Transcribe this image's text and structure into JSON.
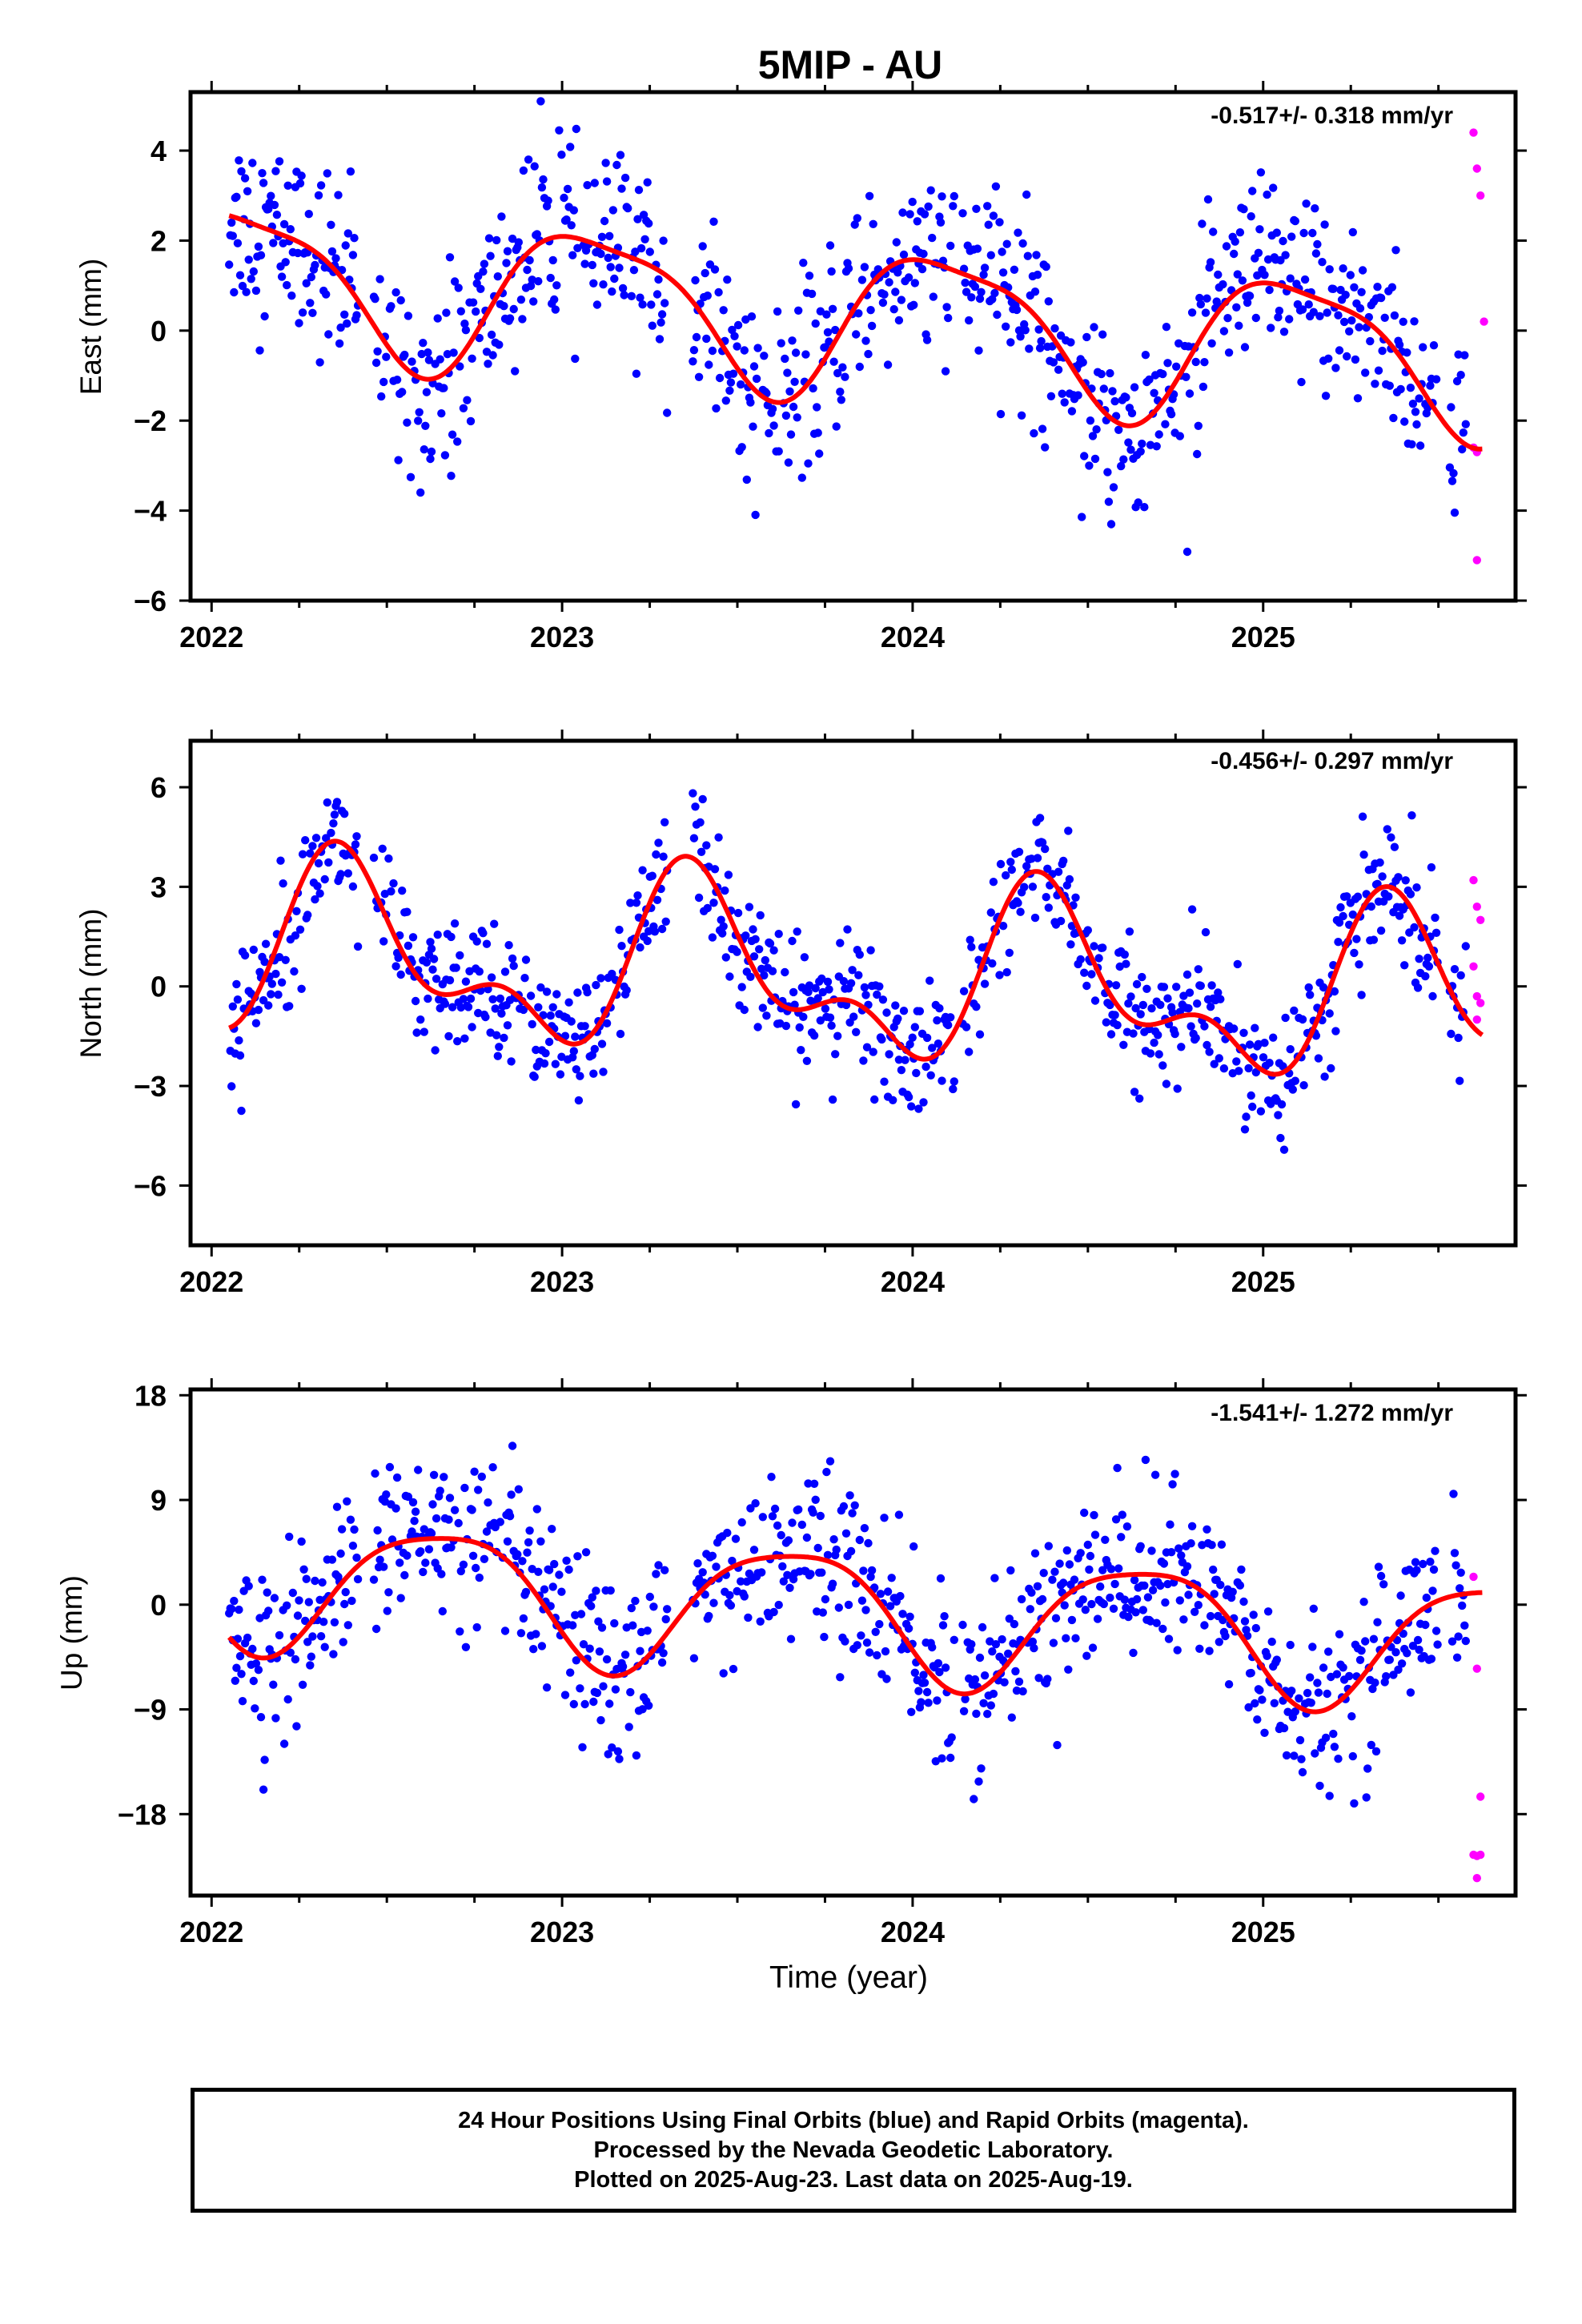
{
  "title": "5MIP - AU",
  "colors": {
    "final_orbit_points": "#0000ff",
    "rapid_orbit_points": "#ff00ff",
    "fit_curve": "#ff0000",
    "frame": "#000000"
  },
  "xlabel": "Time (year)",
  "footer": {
    "lines": [
      "24 Hour Positions Using Final Orbits (blue) and Rapid Orbits (magenta).",
      "Processed by the Nevada Geodetic Laboratory.",
      "Plotted on 2025-Aug-23. Last data on 2025-Aug-19."
    ]
  },
  "chart_data": [
    {
      "type": "scatter",
      "ylabel": "East (mm)",
      "rate_label": "-0.517+/- 0.318 mm/yr",
      "xlim": [
        2021.94,
        2025.72
      ],
      "ylim": [
        -6,
        5.3
      ],
      "xticks": [
        2022,
        2023,
        2024,
        2025
      ],
      "xtick_labels": [
        "2022",
        "2023",
        "2024",
        "2025"
      ],
      "yticks": [
        -6,
        -4,
        -2,
        0,
        2,
        4
      ],
      "ytick_labels": [
        "−6",
        "−4",
        "−2",
        "0",
        "2",
        "4"
      ],
      "fit": {
        "offset": 0.3,
        "trend": -0.517,
        "annual_cos": -0.45,
        "annual_sin": 1.55,
        "semiannual_cos": 0.2,
        "semiannual_sin": 0.35,
        "t0": 2023.8
      },
      "scatter_sd": 1.05,
      "rapid_points": [
        [
          2025.6,
          4.4
        ],
        [
          2025.61,
          3.6
        ],
        [
          2025.62,
          3.0
        ],
        [
          2025.63,
          0.2
        ],
        [
          2025.6,
          -2.6
        ],
        [
          2025.61,
          -2.7
        ],
        [
          2025.61,
          -5.1
        ]
      ]
    },
    {
      "type": "scatter",
      "ylabel": "North (mm)",
      "rate_label": "-0.456+/- 0.297 mm/yr",
      "xlim": [
        2021.94,
        2025.72
      ],
      "ylim": [
        -7.8,
        7.4
      ],
      "xticks": [
        2022,
        2023,
        2024,
        2025
      ],
      "xtick_labels": [
        "2022",
        "2023",
        "2024",
        "2025"
      ],
      "yticks": [
        -6,
        -3,
        0,
        3,
        6
      ],
      "ytick_labels": [
        "−6",
        "−3",
        "0",
        "3",
        "6"
      ],
      "fit": {
        "offset": 0.3,
        "trend": -0.456,
        "annual_cos": -1.85,
        "annual_sin": -1.2,
        "semiannual_cos": 1.15,
        "semiannual_sin": 0.6,
        "t0": 2023.8
      },
      "scatter_sd": 0.95,
      "rapid_points": [
        [
          2025.6,
          3.2
        ],
        [
          2025.61,
          2.4
        ],
        [
          2025.62,
          2.0
        ],
        [
          2025.6,
          0.6
        ],
        [
          2025.61,
          -0.3
        ],
        [
          2025.62,
          -0.5
        ],
        [
          2025.61,
          -1.0
        ]
      ]
    },
    {
      "type": "scatter",
      "ylabel": "Up (mm)",
      "rate_label": "-1.541+/- 1.272 mm/yr",
      "xlim": [
        2021.94,
        2025.72
      ],
      "ylim": [
        -25,
        18.5
      ],
      "xticks": [
        2022,
        2023,
        2024,
        2025
      ],
      "xtick_labels": [
        "2022",
        "2023",
        "2024",
        "2025"
      ],
      "yticks": [
        -18,
        -9,
        0,
        9,
        18
      ],
      "ytick_labels": [
        "−18",
        "−9",
        "0",
        "9",
        "18"
      ],
      "fit": {
        "offset": -0.5,
        "trend": -1.541,
        "annual_cos": 3.2,
        "annual_sin": -4.5,
        "semiannual_cos": 0.5,
        "semiannual_sin": 1.0,
        "t0": 2023.8
      },
      "scatter_sd": 3.6,
      "rapid_points": [
        [
          2025.6,
          2.4
        ],
        [
          2025.61,
          -5.5
        ],
        [
          2025.62,
          -16.5
        ],
        [
          2025.6,
          -21.5
        ],
        [
          2025.61,
          -21.6
        ],
        [
          2025.62,
          -21.5
        ],
        [
          2025.61,
          -23.5
        ]
      ]
    }
  ]
}
